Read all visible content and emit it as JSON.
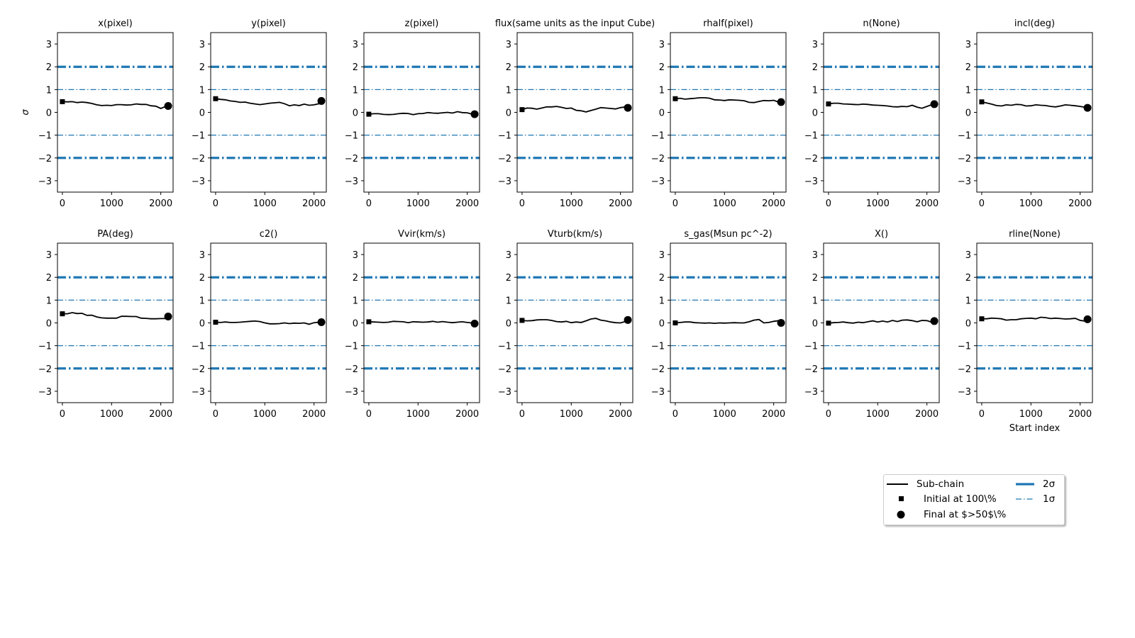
{
  "chart_data": {
    "type": "line",
    "ylabel": "σ",
    "xlabel": "Start index",
    "xlim": [
      -100,
      2250
    ],
    "ylim": [
      -3.5,
      3.5
    ],
    "xticks": [
      0,
      1000,
      2000
    ],
    "yticks": [
      3,
      2,
      1,
      0,
      -1,
      -2,
      -3
    ],
    "reference_lines": [
      {
        "name": "2σ",
        "values": [
          2,
          -2
        ]
      },
      {
        "name": "1σ",
        "values": [
          1,
          -1
        ]
      }
    ],
    "legend": {
      "placement": "lower-right",
      "entries": [
        {
          "label": "Sub-chain",
          "marker": "line"
        },
        {
          "label": "Initial at 100\\%",
          "marker": "square"
        },
        {
          "label": "Final at $>50$\\%",
          "marker": "circle"
        },
        {
          "label": "2σ",
          "marker": "thick-dashdot"
        },
        {
          "label": "1σ",
          "marker": "thin-dashdot"
        }
      ]
    },
    "colors": {
      "reference": "#1f77b4",
      "series": "#000000"
    },
    "panels": [
      {
        "title": "x(pixel)",
        "x": [
          0,
          100,
          200,
          300,
          400,
          500,
          600,
          700,
          800,
          900,
          1000,
          1100,
          1200,
          1300,
          1400,
          1500,
          1600,
          1700,
          1800,
          1900,
          2000,
          2100,
          2150
        ],
        "y": [
          0.47,
          0.46,
          0.47,
          0.43,
          0.45,
          0.43,
          0.39,
          0.33,
          0.3,
          0.31,
          0.3,
          0.34,
          0.34,
          0.32,
          0.33,
          0.37,
          0.35,
          0.35,
          0.29,
          0.27,
          0.17,
          0.26,
          0.28
        ]
      },
      {
        "title": "y(pixel)",
        "x": [
          0,
          100,
          200,
          300,
          400,
          500,
          600,
          700,
          800,
          900,
          1000,
          1100,
          1200,
          1300,
          1400,
          1500,
          1600,
          1700,
          1800,
          1900,
          2000,
          2100,
          2150
        ],
        "y": [
          0.6,
          0.57,
          0.55,
          0.5,
          0.48,
          0.44,
          0.45,
          0.4,
          0.37,
          0.34,
          0.37,
          0.4,
          0.42,
          0.44,
          0.38,
          0.29,
          0.33,
          0.3,
          0.36,
          0.31,
          0.33,
          0.38,
          0.5
        ]
      },
      {
        "title": "z(pixel)",
        "x": [
          0,
          100,
          200,
          300,
          400,
          500,
          600,
          700,
          800,
          900,
          1000,
          1100,
          1200,
          1300,
          1400,
          1500,
          1600,
          1700,
          1800,
          1900,
          2000,
          2100,
          2150
        ],
        "y": [
          -0.08,
          -0.06,
          -0.06,
          -0.09,
          -0.1,
          -0.09,
          -0.06,
          -0.04,
          -0.05,
          -0.1,
          -0.06,
          -0.05,
          -0.01,
          -0.03,
          -0.04,
          -0.02,
          0.0,
          -0.03,
          0.03,
          -0.01,
          -0.02,
          -0.08,
          -0.08
        ]
      },
      {
        "title": "flux(same units as the input Cube)",
        "x": [
          0,
          100,
          200,
          300,
          400,
          500,
          600,
          700,
          800,
          900,
          1000,
          1100,
          1200,
          1300,
          1400,
          1500,
          1600,
          1700,
          1800,
          1900,
          2000,
          2100,
          2150
        ],
        "y": [
          0.12,
          0.19,
          0.18,
          0.14,
          0.19,
          0.24,
          0.24,
          0.26,
          0.22,
          0.17,
          0.19,
          0.09,
          0.07,
          0.02,
          0.08,
          0.14,
          0.21,
          0.19,
          0.17,
          0.15,
          0.21,
          0.24,
          0.2
        ]
      },
      {
        "title": "rhalf(pixel)",
        "x": [
          0,
          100,
          200,
          300,
          400,
          500,
          600,
          700,
          800,
          900,
          1000,
          1100,
          1200,
          1300,
          1400,
          1500,
          1600,
          1700,
          1800,
          1900,
          2000,
          2100,
          2150
        ],
        "y": [
          0.6,
          0.62,
          0.58,
          0.6,
          0.62,
          0.64,
          0.64,
          0.62,
          0.55,
          0.54,
          0.52,
          0.55,
          0.54,
          0.53,
          0.51,
          0.44,
          0.43,
          0.48,
          0.52,
          0.51,
          0.53,
          0.45,
          0.45
        ]
      },
      {
        "title": "n(None)",
        "x": [
          0,
          100,
          200,
          300,
          400,
          500,
          600,
          700,
          800,
          900,
          1000,
          1100,
          1200,
          1300,
          1400,
          1500,
          1600,
          1700,
          1800,
          1900,
          2000,
          2100,
          2150
        ],
        "y": [
          0.37,
          0.4,
          0.4,
          0.37,
          0.36,
          0.35,
          0.34,
          0.36,
          0.35,
          0.32,
          0.31,
          0.3,
          0.28,
          0.25,
          0.24,
          0.26,
          0.25,
          0.31,
          0.23,
          0.18,
          0.26,
          0.34,
          0.36
        ]
      },
      {
        "title": "incl(deg)",
        "x": [
          0,
          100,
          200,
          300,
          400,
          500,
          600,
          700,
          800,
          900,
          1000,
          1100,
          1200,
          1300,
          1400,
          1500,
          1600,
          1700,
          1800,
          1900,
          2000,
          2100,
          2150
        ],
        "y": [
          0.46,
          0.41,
          0.36,
          0.3,
          0.28,
          0.33,
          0.31,
          0.35,
          0.34,
          0.28,
          0.29,
          0.33,
          0.31,
          0.3,
          0.26,
          0.24,
          0.28,
          0.33,
          0.31,
          0.29,
          0.26,
          0.22,
          0.2
        ]
      },
      {
        "title": "PA(deg)",
        "x": [
          0,
          100,
          200,
          300,
          400,
          500,
          600,
          700,
          800,
          900,
          1000,
          1100,
          1200,
          1300,
          1400,
          1500,
          1600,
          1700,
          1800,
          1900,
          2000,
          2100,
          2150
        ],
        "y": [
          0.4,
          0.4,
          0.45,
          0.41,
          0.42,
          0.33,
          0.34,
          0.26,
          0.22,
          0.21,
          0.21,
          0.21,
          0.29,
          0.29,
          0.28,
          0.28,
          0.21,
          0.2,
          0.18,
          0.18,
          0.19,
          0.19,
          0.28
        ]
      },
      {
        "title": "c2()",
        "x": [
          0,
          100,
          200,
          300,
          400,
          500,
          600,
          700,
          800,
          900,
          1000,
          1100,
          1200,
          1300,
          1400,
          1500,
          1600,
          1700,
          1800,
          1900,
          2000,
          2100,
          2150
        ],
        "y": [
          0.03,
          0.02,
          0.04,
          0.02,
          0.02,
          0.03,
          0.05,
          0.07,
          0.08,
          0.06,
          0.0,
          -0.04,
          -0.04,
          -0.03,
          0.0,
          -0.03,
          -0.01,
          -0.02,
          0.0,
          -0.06,
          0.01,
          0.03,
          0.03
        ]
      },
      {
        "title": "Vvir(km/s)",
        "x": [
          0,
          100,
          200,
          300,
          400,
          500,
          600,
          700,
          800,
          900,
          1000,
          1100,
          1200,
          1300,
          1400,
          1500,
          1600,
          1700,
          1800,
          1900,
          2000,
          2100,
          2150
        ],
        "y": [
          0.05,
          0.04,
          0.03,
          0.02,
          0.03,
          0.07,
          0.06,
          0.05,
          0.01,
          0.05,
          0.04,
          0.03,
          0.04,
          0.07,
          0.03,
          0.06,
          0.03,
          0.01,
          0.03,
          0.05,
          0.02,
          0.0,
          -0.03
        ]
      },
      {
        "title": "Vturb(km/s)",
        "x": [
          0,
          100,
          200,
          300,
          400,
          500,
          600,
          700,
          800,
          900,
          1000,
          1100,
          1200,
          1300,
          1400,
          1500,
          1600,
          1700,
          1800,
          1900,
          2000,
          2100,
          2150
        ],
        "y": [
          0.11,
          0.09,
          0.1,
          0.13,
          0.14,
          0.14,
          0.11,
          0.06,
          0.04,
          0.07,
          0.01,
          0.04,
          0.02,
          0.09,
          0.17,
          0.2,
          0.12,
          0.09,
          0.04,
          0.01,
          0.0,
          0.06,
          0.13
        ]
      },
      {
        "title": "s_gas(Msun pc^-2)",
        "x": [
          0,
          100,
          200,
          300,
          400,
          500,
          600,
          700,
          800,
          900,
          1000,
          1100,
          1200,
          1300,
          1400,
          1500,
          1600,
          1700,
          1800,
          1900,
          2000,
          2100,
          2150
        ],
        "y": [
          0.0,
          0.02,
          0.04,
          0.04,
          0.01,
          0.0,
          -0.01,
          0.0,
          -0.02,
          0.0,
          -0.01,
          0.0,
          0.01,
          0.0,
          0.0,
          0.05,
          0.12,
          0.15,
          0.0,
          0.02,
          0.07,
          0.1,
          0.0
        ]
      },
      {
        "title": "X()",
        "x": [
          0,
          100,
          200,
          300,
          400,
          500,
          600,
          700,
          800,
          900,
          1000,
          1100,
          1200,
          1300,
          1400,
          1500,
          1600,
          1700,
          1800,
          1900,
          2000,
          2100,
          2150
        ],
        "y": [
          -0.01,
          0.01,
          0.02,
          0.04,
          0.01,
          -0.01,
          0.03,
          0.01,
          0.05,
          0.09,
          0.04,
          0.08,
          0.04,
          0.11,
          0.06,
          0.12,
          0.13,
          0.1,
          0.05,
          0.11,
          0.1,
          0.03,
          0.08
        ]
      },
      {
        "title": "rline(None)",
        "x": [
          0,
          100,
          200,
          300,
          400,
          500,
          600,
          700,
          800,
          900,
          1000,
          1100,
          1200,
          1300,
          1400,
          1500,
          1600,
          1700,
          1800,
          1900,
          2000,
          2100,
          2150
        ],
        "y": [
          0.18,
          0.18,
          0.21,
          0.2,
          0.18,
          0.12,
          0.14,
          0.14,
          0.18,
          0.2,
          0.21,
          0.18,
          0.25,
          0.23,
          0.19,
          0.21,
          0.19,
          0.17,
          0.18,
          0.2,
          0.11,
          0.08,
          0.16
        ]
      }
    ]
  }
}
